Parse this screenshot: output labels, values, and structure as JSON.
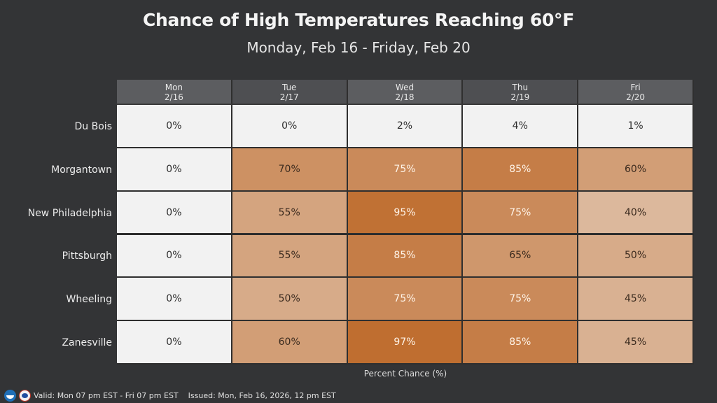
{
  "title": "Chance of High Temperatures Reaching 60°F",
  "subtitle": "Monday, Feb 16 - Friday, Feb 20",
  "footer": {
    "valid": "Valid: Mon 07 pm EST - Fri 07 pm EST",
    "issued": "Issued: Mon, Feb 16, 2026, 12 pm EST",
    "logos": [
      "noaa-logo-icon",
      "nws-logo-icon"
    ]
  },
  "chart_data": {
    "type": "heatmap",
    "title": "Chance of High Temperatures Reaching 60°F",
    "subtitle": "Monday, Feb 16 - Friday, Feb 20",
    "xlabel": "Percent Chance (%)",
    "ylabel": "",
    "columns": [
      {
        "day": "Mon",
        "date": "2/16"
      },
      {
        "day": "Tue",
        "date": "2/17"
      },
      {
        "day": "Wed",
        "date": "2/18"
      },
      {
        "day": "Thu",
        "date": "2/19"
      },
      {
        "day": "Fri",
        "date": "2/20"
      }
    ],
    "rows": [
      "Du Bois",
      "Morgantown",
      "New Philadelphia",
      "Pittsburgh",
      "Wheeling",
      "Zanesville"
    ],
    "values": [
      [
        0,
        0,
        2,
        4,
        1
      ],
      [
        0,
        70,
        75,
        85,
        60
      ],
      [
        0,
        55,
        95,
        75,
        40
      ],
      [
        0,
        55,
        85,
        65,
        50
      ],
      [
        0,
        50,
        75,
        75,
        45
      ],
      [
        0,
        60,
        97,
        85,
        45
      ]
    ],
    "unit": "%",
    "color_scale": {
      "low": "#f2f2f2",
      "high": "#bf6e30"
    },
    "value_range": [
      0,
      100
    ]
  }
}
